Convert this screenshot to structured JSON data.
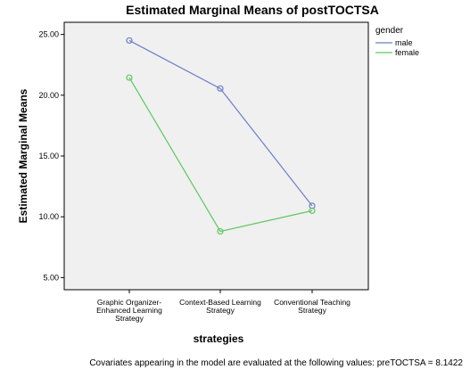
{
  "chart_data": {
    "type": "line",
    "title": "Estimated Marginal Means of postTOCTSA",
    "xlabel": "strategies",
    "ylabel": "Estimated Marginal Means",
    "categories": [
      [
        "Graphic Organizer-",
        "Enhanced Learning",
        "Strategy"
      ],
      [
        "Context-Based Learning",
        "Strategy"
      ],
      [
        "Conventional Teaching",
        "Strategy"
      ]
    ],
    "ylim": [
      4,
      26
    ],
    "yticks": [
      "5.00",
      "10.00",
      "15.00",
      "20.00",
      "25.00"
    ],
    "legend_title": "gender",
    "legend_position": "right",
    "series": [
      {
        "name": "male",
        "color": "#6a7fc8",
        "values": [
          24.5,
          20.55,
          10.9
        ]
      },
      {
        "name": "female",
        "color": "#5dc85d",
        "values": [
          21.45,
          8.8,
          10.5
        ]
      }
    ],
    "grid": false,
    "plot_background": "#f0f0f0",
    "footnote": "Covariates appearing in the model are evaluated at the following values: preTOCTSA = 8.1422"
  }
}
